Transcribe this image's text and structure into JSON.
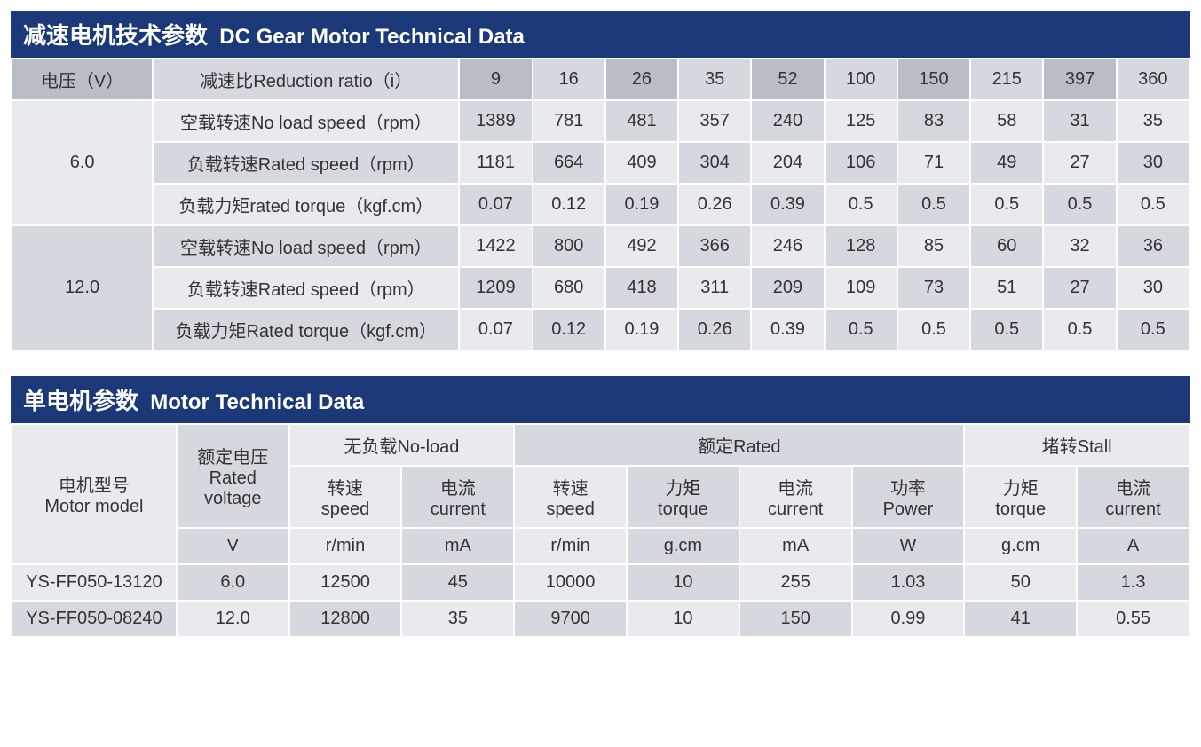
{
  "gear": {
    "title_zh": "减速电机技术参数",
    "title_en": "DC Gear Motor Technical Data",
    "col_voltage": "电压（V）",
    "col_ratio": "减速比Reduction ratio（i）",
    "ratios": [
      "9",
      "16",
      "26",
      "35",
      "52",
      "100",
      "150",
      "215",
      "397",
      "360"
    ],
    "groups": [
      {
        "voltage": "6.0",
        "rows": [
          {
            "label": "空载转速No load speed（rpm）",
            "vals": [
              "1389",
              "781",
              "481",
              "357",
              "240",
              "125",
              "83",
              "58",
              "31",
              "35"
            ]
          },
          {
            "label": "负载转速Rated speed（rpm）",
            "vals": [
              "1181",
              "664",
              "409",
              "304",
              "204",
              "106",
              "71",
              "49",
              "27",
              "30"
            ]
          },
          {
            "label": "负载力矩rated torque（kgf.cm）",
            "vals": [
              "0.07",
              "0.12",
              "0.19",
              "0.26",
              "0.39",
              "0.5",
              "0.5",
              "0.5",
              "0.5",
              "0.5"
            ]
          }
        ]
      },
      {
        "voltage": "12.0",
        "rows": [
          {
            "label": "空载转速No load speed（rpm）",
            "vals": [
              "1422",
              "800",
              "492",
              "366",
              "246",
              "128",
              "85",
              "60",
              "32",
              "36"
            ]
          },
          {
            "label": "负载转速Rated speed（rpm）",
            "vals": [
              "1209",
              "680",
              "418",
              "311",
              "209",
              "109",
              "73",
              "51",
              "27",
              "30"
            ]
          },
          {
            "label": "负载力矩Rated torque（kgf.cm）",
            "vals": [
              "0.07",
              "0.12",
              "0.19",
              "0.26",
              "0.39",
              "0.5",
              "0.5",
              "0.5",
              "0.5",
              "0.5"
            ]
          }
        ]
      }
    ]
  },
  "motor": {
    "title_zh": "单电机参数",
    "title_en": "Motor Technical Data",
    "hdr_model_zh": "电机型号",
    "hdr_model_en": "Motor model",
    "hdr_voltage_zh": "额定电压",
    "hdr_voltage_en": "Rated",
    "hdr_voltage_en2": "voltage",
    "grp_noload": "无负载No-load",
    "grp_rated": "额定Rated",
    "grp_stall": "堵转Stall",
    "sub": {
      "speed_zh": "转速",
      "speed_en": "speed",
      "current_zh": "电流",
      "current_en": "current",
      "torque_zh": "力矩",
      "torque_en": "torque",
      "power_zh": "功率",
      "power_en": "Power"
    },
    "units": [
      "V",
      "r/min",
      "mA",
      "r/min",
      "g.cm",
      "mA",
      "W",
      "g.cm",
      "A"
    ],
    "rows": [
      {
        "model": "YS-FF050-13120",
        "vals": [
          "6.0",
          "12500",
          "45",
          "10000",
          "10",
          "255",
          "1.03",
          "50",
          "1.3"
        ]
      },
      {
        "model": "YS-FF050-08240",
        "vals": [
          "12.0",
          "12800",
          "35",
          "9700",
          "10",
          "150",
          "0.99",
          "41",
          "0.55"
        ]
      }
    ]
  }
}
